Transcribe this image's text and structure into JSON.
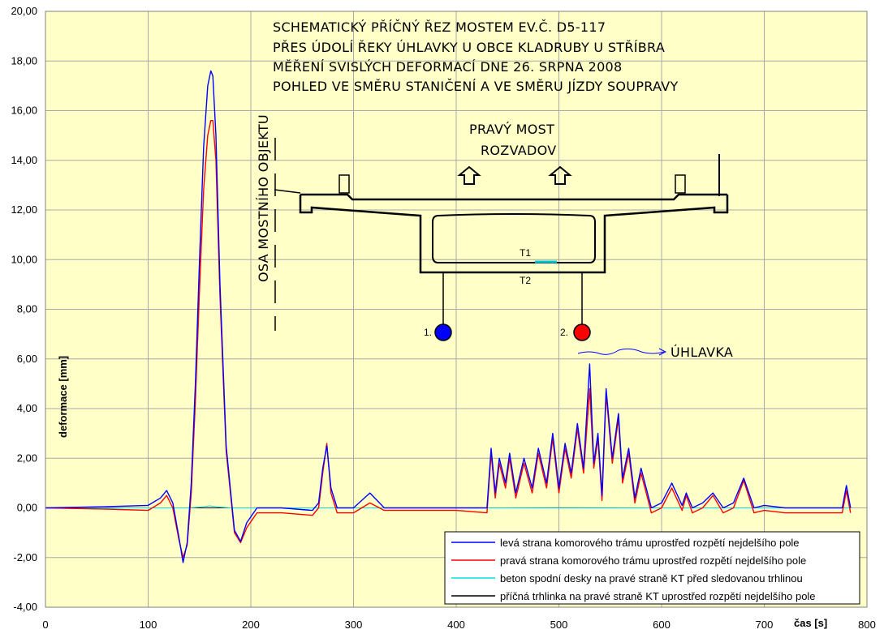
{
  "chart_data": {
    "type": "line",
    "ylabel": "deformace [mm]",
    "xlabel": "čas [s]",
    "xlim": [
      0,
      800
    ],
    "ylim": [
      -4,
      20
    ],
    "x_ticks": [
      "0",
      "100",
      "200",
      "300",
      "400",
      "500",
      "600",
      "700",
      "800"
    ],
    "y_ticks": [
      "-4,00",
      "-2,00",
      "0,00",
      "2,00",
      "4,00",
      "6,00",
      "8,00",
      "10,00",
      "12,00",
      "14,00",
      "16,00",
      "18,00",
      "20,00"
    ],
    "grid": true,
    "legend_position": "bottom-right",
    "series": [
      {
        "name": "levá strana komorového trámu uprostřed rozpětí nejdelšího pole",
        "color": "#0000ff",
        "x": [
          0,
          60,
          100,
          112,
          118,
          124,
          130,
          134,
          138,
          142,
          146,
          150,
          154,
          158,
          161,
          163,
          166,
          170,
          176,
          184,
          190,
          196,
          206,
          230,
          260,
          266,
          270,
          274,
          278,
          284,
          300,
          316,
          330,
          360,
          400,
          430,
          434,
          438,
          442,
          448,
          452,
          458,
          466,
          474,
          480,
          488,
          494,
          500,
          506,
          512,
          518,
          524,
          530,
          534,
          538,
          542,
          546,
          552,
          558,
          562,
          568,
          574,
          580,
          590,
          600,
          610,
          620,
          624,
          630,
          640,
          650,
          660,
          670,
          680,
          690,
          700,
          720,
          740,
          776,
          780,
          784
        ],
        "y": [
          0.0,
          0.05,
          0.1,
          0.4,
          0.7,
          0.2,
          -1.2,
          -2.2,
          -1.4,
          1.0,
          5.0,
          10.0,
          14.5,
          17.0,
          17.6,
          17.4,
          15.0,
          9.0,
          2.5,
          -0.9,
          -1.35,
          -0.6,
          0.0,
          0.0,
          -0.1,
          0.2,
          1.6,
          2.5,
          0.8,
          0.0,
          0.0,
          0.6,
          0.0,
          0.0,
          0.0,
          0.0,
          2.4,
          0.6,
          2.0,
          1.0,
          2.2,
          0.6,
          2.0,
          0.8,
          2.4,
          1.0,
          3.0,
          0.8,
          2.6,
          1.4,
          3.4,
          1.6,
          5.8,
          1.8,
          3.0,
          0.5,
          4.8,
          2.0,
          3.8,
          1.2,
          2.4,
          0.4,
          1.6,
          0.0,
          0.2,
          1.0,
          0.1,
          0.6,
          0.0,
          0.2,
          0.6,
          0.0,
          0.2,
          1.2,
          0.0,
          0.1,
          0.0,
          0.0,
          0.0,
          0.9,
          0.0
        ]
      },
      {
        "name": "pravá strana komorového trámu uprostřed rozpětí nejdelšího pole",
        "color": "#ff0000",
        "x": [
          0,
          60,
          100,
          112,
          118,
          124,
          130,
          134,
          138,
          142,
          146,
          150,
          154,
          158,
          161,
          163,
          166,
          170,
          176,
          184,
          190,
          196,
          206,
          230,
          260,
          266,
          270,
          274,
          278,
          284,
          300,
          316,
          330,
          360,
          400,
          430,
          434,
          438,
          442,
          448,
          452,
          458,
          466,
          474,
          480,
          488,
          494,
          500,
          506,
          512,
          518,
          524,
          530,
          534,
          538,
          542,
          546,
          552,
          558,
          562,
          568,
          574,
          580,
          590,
          600,
          610,
          620,
          624,
          630,
          640,
          650,
          660,
          670,
          680,
          690,
          700,
          720,
          740,
          776,
          780,
          784
        ],
        "y": [
          0.0,
          -0.05,
          -0.1,
          0.2,
          0.5,
          0.0,
          -1.3,
          -2.0,
          -1.5,
          0.6,
          4.3,
          8.8,
          12.8,
          15.0,
          15.6,
          15.6,
          14.0,
          8.5,
          2.3,
          -1.0,
          -1.4,
          -0.8,
          -0.2,
          -0.2,
          -0.3,
          0.0,
          1.4,
          2.6,
          0.6,
          -0.2,
          -0.2,
          0.2,
          -0.1,
          -0.1,
          -0.1,
          -0.2,
          2.2,
          0.4,
          1.8,
          0.8,
          2.0,
          0.4,
          1.8,
          0.6,
          2.2,
          0.8,
          2.8,
          0.6,
          2.4,
          1.2,
          3.2,
          1.4,
          4.8,
          1.6,
          2.8,
          0.3,
          4.6,
          1.8,
          3.6,
          1.0,
          2.2,
          0.2,
          1.4,
          -0.2,
          0.0,
          0.8,
          -0.1,
          0.5,
          -0.2,
          0.0,
          0.5,
          -0.2,
          0.0,
          1.1,
          -0.2,
          -0.1,
          -0.2,
          -0.2,
          -0.2,
          0.7,
          -0.2
        ]
      },
      {
        "name": "beton spodní desky na pravé straně  KT před sledovanou trhlinou",
        "color": "#00e0e0",
        "x": [
          0,
          100,
          140,
          150,
          160,
          170,
          180,
          200,
          300,
          400,
          500,
          600,
          700,
          784
        ],
        "y": [
          0.0,
          0.0,
          0.0,
          0.03,
          0.08,
          0.03,
          0.0,
          0.0,
          0.0,
          0.0,
          0.01,
          0.0,
          0.0,
          0.0
        ]
      },
      {
        "name": "příčná trhlinka na pravé straně KT uprostřed rozpětí nejdelšího pole",
        "color": "#000000",
        "x": [
          0,
          100,
          200,
          300,
          400,
          500,
          600,
          700,
          784
        ],
        "y": [
          0.0,
          0.0,
          0.0,
          0.0,
          0.0,
          0.0,
          0.0,
          0.0,
          0.0
        ]
      }
    ]
  },
  "annotations": {
    "title_lines": [
      "SCHEMATICKÝ PŘÍČNÝ ŘEZ MOSTEM EV.Č. D5-117",
      "PŘES ÚDOLÍ ŘEKY ÚHLAVKY U OBCE KLADRUBY U STŘÍBRA",
      "MĚŘENÍ SVISLÝCH DEFORMACÍ DNE 26. SRPNA 2008",
      "POHLED VE SMĚRU STANIČENÍ A VE SMĚRU JÍZDY SOUPRAVY"
    ],
    "bridge_label_1": "PRAVÝ MOST",
    "bridge_label_2": "ROZVADOV",
    "axis_label": "OSA MOSTNÍHO OBJEKTU",
    "sensor_t1": "T1",
    "sensor_t2": "T2",
    "point_1": "1.",
    "point_2": "2.",
    "river": "ÚHLAVKA",
    "point_1_color": "#0000ff",
    "point_2_color": "#ff0000"
  }
}
